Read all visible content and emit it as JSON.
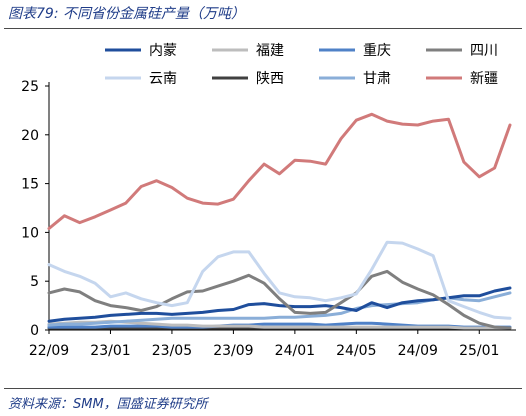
{
  "figure": {
    "title": "图表79:  不同省份金属硅产量（万吨）",
    "source": "资料来源：SMM，国盛证券研究所"
  },
  "chart_data": {
    "type": "line",
    "title": "",
    "xlabel": "",
    "ylabel": "",
    "ylim": [
      0,
      25
    ],
    "yticks": [
      0,
      5,
      10,
      15,
      20,
      25
    ],
    "grid": false,
    "legend_position": "top",
    "x": [
      "22/09",
      "22/10",
      "22/11",
      "22/12",
      "23/01",
      "23/02",
      "23/03",
      "23/04",
      "23/05",
      "23/06",
      "23/07",
      "23/08",
      "23/09",
      "23/10",
      "23/11",
      "23/12",
      "24/01",
      "24/02",
      "24/03",
      "24/04",
      "24/05",
      "24/06",
      "24/07",
      "24/08",
      "24/09",
      "24/10",
      "24/11",
      "24/12",
      "25/01",
      "25/02",
      "25/03"
    ],
    "xtick_labels": [
      "22/09",
      "23/01",
      "23/05",
      "23/09",
      "24/01",
      "24/05",
      "24/09",
      "25/01"
    ],
    "series": [
      {
        "name": "内蒙",
        "color": "#1f4e9c",
        "width": 3,
        "values": [
          0.9,
          1.1,
          1.2,
          1.3,
          1.5,
          1.6,
          1.7,
          1.7,
          1.6,
          1.7,
          1.8,
          2.0,
          2.1,
          2.6,
          2.7,
          2.5,
          2.4,
          2.4,
          2.5,
          2.3,
          2.0,
          2.8,
          2.3,
          2.8,
          3.0,
          3.1,
          3.3,
          3.5,
          3.5,
          4.0,
          4.3
        ]
      },
      {
        "name": "福建",
        "color": "#bdbdbd",
        "width": 3,
        "values": [
          0.6,
          0.7,
          0.8,
          0.8,
          0.9,
          0.8,
          0.7,
          0.6,
          0.5,
          0.5,
          0.4,
          0.4,
          0.4,
          0.4,
          0.3,
          0.3,
          0.3,
          0.3,
          0.3,
          0.3,
          0.3,
          0.3,
          0.3,
          0.3,
          0.3,
          0.3,
          0.3,
          0.2,
          0.2,
          0.2,
          0.2
        ]
      },
      {
        "name": "重庆",
        "color": "#4f81c7",
        "width": 3,
        "values": [
          0.3,
          0.3,
          0.3,
          0.3,
          0.4,
          0.4,
          0.4,
          0.4,
          0.3,
          0.3,
          0.3,
          0.4,
          0.5,
          0.5,
          0.6,
          0.6,
          0.6,
          0.6,
          0.5,
          0.6,
          0.7,
          0.7,
          0.6,
          0.5,
          0.4,
          0.4,
          0.4,
          0.3,
          0.3,
          0.3,
          0.3
        ]
      },
      {
        "name": "四川",
        "color": "#7f7f7f",
        "width": 3,
        "values": [
          3.8,
          4.2,
          3.9,
          3.0,
          2.5,
          2.3,
          2.0,
          2.4,
          3.2,
          3.9,
          4.0,
          4.5,
          5.0,
          5.6,
          4.8,
          3.2,
          1.8,
          1.7,
          1.8,
          2.8,
          3.8,
          5.5,
          6.0,
          4.9,
          4.2,
          3.6,
          2.6,
          1.5,
          0.7,
          0.3,
          0.2
        ]
      },
      {
        "name": "云南",
        "color": "#c5d6ee",
        "width": 3,
        "values": [
          6.7,
          6.0,
          5.5,
          4.8,
          3.4,
          3.8,
          3.2,
          2.8,
          2.5,
          2.8,
          6.0,
          7.5,
          8.0,
          8.0,
          5.8,
          3.8,
          3.4,
          3.3,
          3.0,
          3.3,
          3.7,
          6.2,
          9.0,
          8.9,
          8.3,
          7.6,
          3.0,
          2.4,
          1.8,
          1.3,
          1.2
        ]
      },
      {
        "name": "陕西",
        "color": "#404040",
        "width": 3,
        "values": [
          0.2,
          0.2,
          0.2,
          0.2,
          0.2,
          0.2,
          0.2,
          0.2,
          0.2,
          0.2,
          0.2,
          0.2,
          0.2,
          0.2,
          0.2,
          0.2,
          0.2,
          0.2,
          0.2,
          0.2,
          0.2,
          0.2,
          0.2,
          0.2,
          0.2,
          0.2,
          0.2,
          0.2,
          0.2,
          0.2,
          0.2
        ]
      },
      {
        "name": "甘肃",
        "color": "#8aaed8",
        "width": 3,
        "values": [
          0.5,
          0.6,
          0.6,
          0.7,
          0.8,
          0.9,
          1.0,
          1.1,
          1.2,
          1.2,
          1.2,
          1.2,
          1.2,
          1.2,
          1.2,
          1.3,
          1.3,
          1.4,
          1.5,
          1.7,
          2.2,
          2.5,
          2.6,
          2.7,
          2.8,
          3.1,
          3.3,
          3.1,
          3.0,
          3.4,
          3.8
        ]
      },
      {
        "name": "新疆",
        "color": "#d17a7a",
        "width": 3,
        "values": [
          10.4,
          11.7,
          11.0,
          11.6,
          12.3,
          13.0,
          14.7,
          15.3,
          14.6,
          13.5,
          13.0,
          12.9,
          13.4,
          15.3,
          17.0,
          16.0,
          17.4,
          17.3,
          17.0,
          19.6,
          21.5,
          22.1,
          21.4,
          21.1,
          21.0,
          21.4,
          21.6,
          17.2,
          15.7,
          16.6,
          21.0
        ]
      }
    ]
  }
}
